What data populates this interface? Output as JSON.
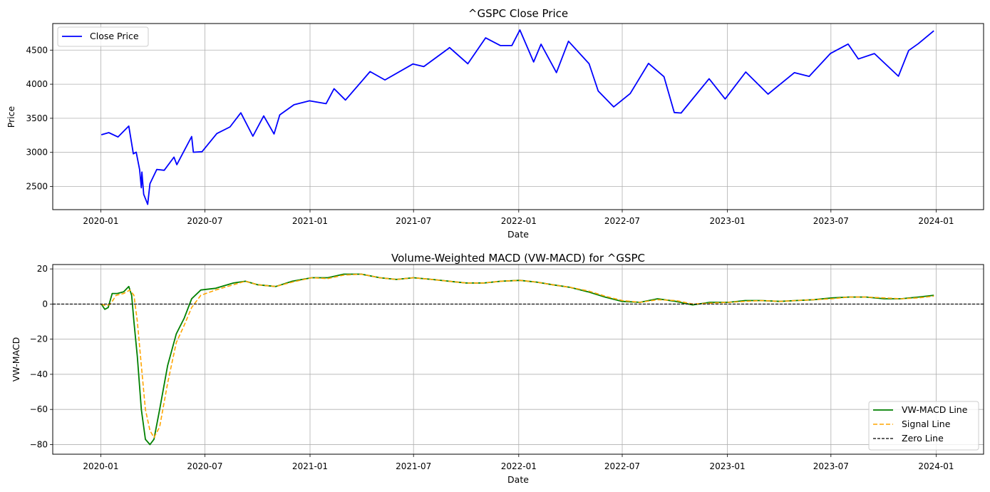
{
  "chart_data": [
    {
      "type": "line",
      "title": "^GSPC Close Price",
      "xlabel": "Date",
      "ylabel": "Price",
      "x_ticks": [
        "2020-01",
        "2020-07",
        "2021-01",
        "2021-07",
        "2022-01",
        "2022-07",
        "2023-01",
        "2023-07",
        "2024-01"
      ],
      "y_ticks": [
        "2500",
        "3000",
        "3500",
        "4000",
        "4500"
      ],
      "xlim": [
        "2019-10-09",
        "2024-03-24"
      ],
      "ylim": [
        2160,
        4890
      ],
      "grid": true,
      "legend": {
        "placement": "top-left",
        "entries": [
          {
            "label": "Close Price",
            "color": "#0000ff",
            "style": "solid"
          }
        ]
      },
      "series": [
        {
          "name": "Close Price",
          "color": "#0000ff",
          "points": [
            [
              "2020-01-02",
              3258
            ],
            [
              "2020-01-15",
              3290
            ],
            [
              "2020-01-31",
              3226
            ],
            [
              "2020-02-19",
              3386
            ],
            [
              "2020-02-27",
              2979
            ],
            [
              "2020-03-03",
              3003
            ],
            [
              "2020-03-09",
              2747
            ],
            [
              "2020-03-12",
              2481
            ],
            [
              "2020-03-13",
              2711
            ],
            [
              "2020-03-16",
              2386
            ],
            [
              "2020-03-23",
              2237
            ],
            [
              "2020-03-27",
              2541
            ],
            [
              "2020-04-08",
              2750
            ],
            [
              "2020-04-21",
              2737
            ],
            [
              "2020-05-08",
              2930
            ],
            [
              "2020-05-13",
              2820
            ],
            [
              "2020-06-08",
              3232
            ],
            [
              "2020-06-11",
              3002
            ],
            [
              "2020-06-26",
              3009
            ],
            [
              "2020-07-22",
              3276
            ],
            [
              "2020-08-14",
              3373
            ],
            [
              "2020-09-02",
              3580
            ],
            [
              "2020-09-23",
              3237
            ],
            [
              "2020-10-12",
              3534
            ],
            [
              "2020-10-30",
              3270
            ],
            [
              "2020-11-09",
              3550
            ],
            [
              "2020-12-04",
              3699
            ],
            [
              "2020-12-31",
              3756
            ],
            [
              "2021-01-29",
              3714
            ],
            [
              "2021-02-12",
              3934
            ],
            [
              "2021-03-04",
              3768
            ],
            [
              "2021-04-16",
              4185
            ],
            [
              "2021-05-12",
              4063
            ],
            [
              "2021-06-30",
              4297
            ],
            [
              "2021-07-19",
              4258
            ],
            [
              "2021-08-31",
              4523
            ],
            [
              "2021-09-02",
              4537
            ],
            [
              "2021-10-04",
              4300
            ],
            [
              "2021-11-04",
              4680
            ],
            [
              "2021-11-30",
              4567
            ],
            [
              "2021-12-20",
              4568
            ],
            [
              "2022-01-03",
              4796
            ],
            [
              "2022-01-27",
              4326
            ],
            [
              "2022-02-09",
              4587
            ],
            [
              "2022-03-08",
              4170
            ],
            [
              "2022-03-29",
              4631
            ],
            [
              "2022-05-04",
              4300
            ],
            [
              "2022-05-20",
              3901
            ],
            [
              "2022-06-16",
              3667
            ],
            [
              "2022-07-15",
              3863
            ],
            [
              "2022-08-16",
              4305
            ],
            [
              "2022-09-12",
              4110
            ],
            [
              "2022-09-30",
              3585
            ],
            [
              "2022-10-12",
              3577
            ],
            [
              "2022-11-30",
              4080
            ],
            [
              "2022-12-28",
              3783
            ],
            [
              "2023-02-02",
              4179
            ],
            [
              "2023-03-13",
              3855
            ],
            [
              "2023-04-28",
              4169
            ],
            [
              "2023-05-24",
              4115
            ],
            [
              "2023-06-30",
              4450
            ],
            [
              "2023-07-31",
              4589
            ],
            [
              "2023-08-18",
              4370
            ],
            [
              "2023-09-15",
              4450
            ],
            [
              "2023-10-27",
              4117
            ],
            [
              "2023-11-14",
              4495
            ],
            [
              "2023-12-01",
              4595
            ],
            [
              "2023-12-28",
              4783
            ]
          ]
        }
      ]
    },
    {
      "type": "line",
      "title": "Volume-Weighted MACD (VW-MACD) for ^GSPC",
      "xlabel": "Date",
      "ylabel": "VW-MACD",
      "x_ticks": [
        "2020-01",
        "2020-07",
        "2021-01",
        "2021-07",
        "2022-01",
        "2022-07",
        "2023-01",
        "2023-07",
        "2024-01"
      ],
      "y_ticks": [
        "20",
        "0",
        "−20",
        "−40",
        "−60",
        "−80"
      ],
      "xlim": [
        "2019-10-09",
        "2024-03-24"
      ],
      "ylim": [
        -85.5,
        22.5
      ],
      "grid": true,
      "legend": {
        "placement": "bottom-right",
        "entries": [
          {
            "label": "VW-MACD Line",
            "color": "#008000",
            "style": "solid"
          },
          {
            "label": "Signal Line",
            "color": "#ffa500",
            "style": "dashed"
          },
          {
            "label": "Zero Line",
            "color": "#000000",
            "style": "dashed"
          }
        ]
      },
      "series": [
        {
          "name": "VW-MACD Line",
          "color": "#008000",
          "points": [
            [
              "2020-01-02",
              0
            ],
            [
              "2020-01-08",
              -3
            ],
            [
              "2020-01-14",
              -2
            ],
            [
              "2020-01-21",
              6
            ],
            [
              "2020-01-30",
              6
            ],
            [
              "2020-02-10",
              7
            ],
            [
              "2020-02-19",
              10
            ],
            [
              "2020-02-24",
              5
            ],
            [
              "2020-02-28",
              -10
            ],
            [
              "2020-03-05",
              -30
            ],
            [
              "2020-03-12",
              -60
            ],
            [
              "2020-03-19",
              -77
            ],
            [
              "2020-03-27",
              -80
            ],
            [
              "2020-04-03",
              -77
            ],
            [
              "2020-04-13",
              -60
            ],
            [
              "2020-04-27",
              -35
            ],
            [
              "2020-05-12",
              -17
            ],
            [
              "2020-05-26",
              -8
            ],
            [
              "2020-06-08",
              3
            ],
            [
              "2020-06-24",
              8
            ],
            [
              "2020-07-20",
              9
            ],
            [
              "2020-08-20",
              12
            ],
            [
              "2020-09-10",
              13
            ],
            [
              "2020-10-01",
              11
            ],
            [
              "2020-11-02",
              10
            ],
            [
              "2020-12-01",
              13
            ],
            [
              "2021-01-04",
              15
            ],
            [
              "2021-02-01",
              15
            ],
            [
              "2021-03-01",
              17
            ],
            [
              "2021-04-01",
              17
            ],
            [
              "2021-05-03",
              15
            ],
            [
              "2021-06-01",
              14
            ],
            [
              "2021-07-01",
              15
            ],
            [
              "2021-08-02",
              14
            ],
            [
              "2021-09-01",
              13
            ],
            [
              "2021-10-01",
              12
            ],
            [
              "2021-11-01",
              12
            ],
            [
              "2021-12-01",
              13
            ],
            [
              "2022-01-03",
              13.5
            ],
            [
              "2022-02-01",
              12.5
            ],
            [
              "2022-03-01",
              11
            ],
            [
              "2022-04-01",
              9.5
            ],
            [
              "2022-05-02",
              7
            ],
            [
              "2022-06-01",
              4
            ],
            [
              "2022-07-01",
              1.5
            ],
            [
              "2022-08-01",
              1
            ],
            [
              "2022-09-01",
              3
            ],
            [
              "2022-10-03",
              1.5
            ],
            [
              "2022-11-01",
              -0.5
            ],
            [
              "2022-12-01",
              1
            ],
            [
              "2023-01-03",
              1
            ],
            [
              "2023-02-01",
              2
            ],
            [
              "2023-03-01",
              2
            ],
            [
              "2023-04-03",
              1.5
            ],
            [
              "2023-05-01",
              2
            ],
            [
              "2023-06-01",
              2.5
            ],
            [
              "2023-07-03",
              3.5
            ],
            [
              "2023-08-01",
              4
            ],
            [
              "2023-09-01",
              4
            ],
            [
              "2023-10-02",
              3
            ],
            [
              "2023-11-01",
              3
            ],
            [
              "2023-12-01",
              4
            ],
            [
              "2023-12-28",
              5
            ]
          ]
        },
        {
          "name": "Signal Line",
          "color": "#ffa500",
          "points": [
            [
              "2020-01-02",
              0
            ],
            [
              "2020-01-10",
              -1
            ],
            [
              "2020-01-18",
              0
            ],
            [
              "2020-01-28",
              5
            ],
            [
              "2020-02-10",
              6
            ],
            [
              "2020-02-21",
              8
            ],
            [
              "2020-02-28",
              5
            ],
            [
              "2020-03-05",
              -10
            ],
            [
              "2020-03-12",
              -35
            ],
            [
              "2020-03-19",
              -60
            ],
            [
              "2020-03-27",
              -72
            ],
            [
              "2020-04-03",
              -76
            ],
            [
              "2020-04-13",
              -70
            ],
            [
              "2020-04-27",
              -45
            ],
            [
              "2020-05-12",
              -22
            ],
            [
              "2020-05-26",
              -12
            ],
            [
              "2020-06-08",
              -2
            ],
            [
              "2020-06-24",
              5
            ],
            [
              "2020-07-20",
              8
            ],
            [
              "2020-08-20",
              11
            ],
            [
              "2020-09-10",
              13
            ],
            [
              "2020-10-01",
              11
            ],
            [
              "2020-11-02",
              10
            ],
            [
              "2020-12-01",
              12.5
            ],
            [
              "2021-01-04",
              15
            ],
            [
              "2021-02-01",
              14.5
            ],
            [
              "2021-03-01",
              16.5
            ],
            [
              "2021-04-01",
              17
            ],
            [
              "2021-05-03",
              15
            ],
            [
              "2021-06-01",
              14
            ],
            [
              "2021-07-01",
              15
            ],
            [
              "2021-08-02",
              14
            ],
            [
              "2021-09-01",
              13
            ],
            [
              "2021-10-01",
              12
            ],
            [
              "2021-11-01",
              12
            ],
            [
              "2021-12-01",
              13
            ],
            [
              "2022-01-03",
              13.5
            ],
            [
              "2022-02-01",
              12.5
            ],
            [
              "2022-03-01",
              11
            ],
            [
              "2022-04-01",
              9.5
            ],
            [
              "2022-05-02",
              7.5
            ],
            [
              "2022-06-01",
              4.5
            ],
            [
              "2022-07-01",
              2
            ],
            [
              "2022-08-01",
              1
            ],
            [
              "2022-09-01",
              2.5
            ],
            [
              "2022-10-03",
              2
            ],
            [
              "2022-11-01",
              0
            ],
            [
              "2022-12-01",
              0.5
            ],
            [
              "2023-01-03",
              1
            ],
            [
              "2023-02-01",
              1.5
            ],
            [
              "2023-03-01",
              2
            ],
            [
              "2023-04-03",
              1.5
            ],
            [
              "2023-05-01",
              2
            ],
            [
              "2023-06-01",
              2.5
            ],
            [
              "2023-07-03",
              3
            ],
            [
              "2023-08-01",
              4
            ],
            [
              "2023-09-01",
              4
            ],
            [
              "2023-10-02",
              3.5
            ],
            [
              "2023-11-01",
              3
            ],
            [
              "2023-12-01",
              3.5
            ],
            [
              "2023-12-28",
              4.5
            ]
          ]
        },
        {
          "name": "Zero Line",
          "color": "#000000",
          "horizontal_line": 0
        }
      ]
    }
  ]
}
